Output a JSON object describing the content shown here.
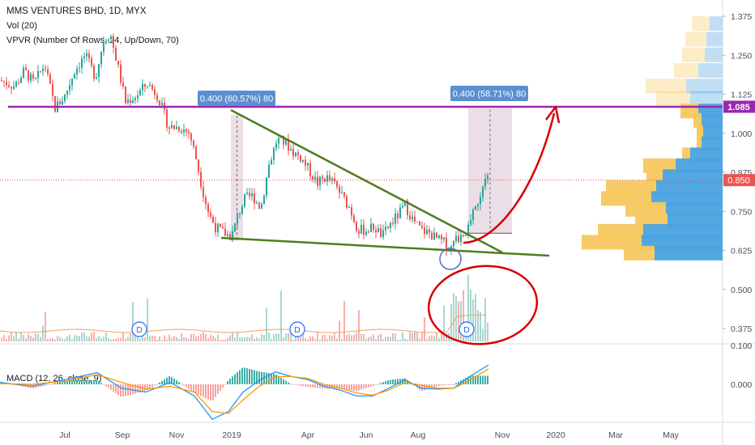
{
  "legend": {
    "title": "MMS VENTURES BHD, 1D, MYX",
    "vol": "Vol (20)",
    "vpvr": "VPVR (Number Of Rows, 24, Up/Down, 70)",
    "macd": "MACD (12, 26, close, 9)"
  },
  "colors": {
    "up": "#26a69a",
    "down": "#ef5350",
    "resistance": "#9c27b0",
    "trendline": "#4e7d1f",
    "annotation": "#d50000",
    "vpvr_up": "#4aa3df",
    "vpvr_down": "#f6c85f",
    "macd_line": "#2196f3",
    "signal_line": "#ff9800",
    "range_fill": "#c9a0b8"
  },
  "chart_data": {
    "type": "candlestick",
    "price_axis": {
      "ticks": [
        "1.375",
        "1.250",
        "1.125",
        "1.000",
        "0.875",
        "0.750",
        "0.625",
        "0.500",
        "0.375"
      ],
      "tick_values": [
        1.375,
        1.25,
        1.125,
        1.0,
        0.875,
        0.75,
        0.625,
        0.5,
        0.375
      ],
      "range": [
        0.35,
        1.4
      ]
    },
    "macd_axis": {
      "ticks": [
        "0.100",
        "0.000"
      ],
      "tick_values": [
        0.1,
        0.0
      ],
      "range": [
        -0.13,
        0.1
      ]
    },
    "time_axis": {
      "ticks": [
        "Jul",
        "Sep",
        "Nov",
        "2019",
        "Apr",
        "Jun",
        "Aug",
        "Nov",
        "2020",
        "Mar",
        "May"
      ]
    },
    "labels": {
      "resistance_price": "1.085",
      "resistance_value": 1.085,
      "last_price": "0.850",
      "last_value": 0.85
    },
    "measurements": [
      {
        "text": "0.400 (60.57%) 80",
        "from": 0.66,
        "to": 1.06
      },
      {
        "text": "0.400 (58.71%) 80",
        "from": 0.68,
        "to": 1.08
      }
    ],
    "dividend_marker": "D",
    "price_path": [
      [
        0,
        1.17
      ],
      [
        18,
        1.15
      ],
      [
        30,
        1.2
      ],
      [
        42,
        1.16
      ],
      [
        55,
        1.22
      ],
      [
        68,
        1.08
      ],
      [
        80,
        1.12
      ],
      [
        92,
        1.2
      ],
      [
        105,
        1.25
      ],
      [
        118,
        1.18
      ],
      [
        128,
        1.3
      ],
      [
        136,
        1.32
      ],
      [
        145,
        1.22
      ],
      [
        155,
        1.1
      ],
      [
        168,
        1.12
      ],
      [
        182,
        1.16
      ],
      [
        195,
        1.12
      ],
      [
        208,
        1.02
      ],
      [
        222,
        1.02
      ],
      [
        234,
        1.0
      ],
      [
        242,
        0.92
      ],
      [
        250,
        0.82
      ],
      [
        258,
        0.74
      ],
      [
        266,
        0.7
      ],
      [
        276,
        0.68
      ],
      [
        286,
        0.67
      ],
      [
        294,
        0.74
      ],
      [
        302,
        0.79
      ],
      [
        312,
        0.8
      ],
      [
        322,
        0.76
      ],
      [
        332,
        0.9
      ],
      [
        342,
        0.98
      ],
      [
        352,
        0.97
      ],
      [
        362,
        0.94
      ],
      [
        372,
        0.92
      ],
      [
        382,
        0.88
      ],
      [
        392,
        0.84
      ],
      [
        402,
        0.86
      ],
      [
        412,
        0.84
      ],
      [
        422,
        0.8
      ],
      [
        432,
        0.76
      ],
      [
        442,
        0.69
      ],
      [
        452,
        0.69
      ],
      [
        462,
        0.7
      ],
      [
        472,
        0.67
      ],
      [
        482,
        0.71
      ],
      [
        492,
        0.74
      ],
      [
        500,
        0.77
      ],
      [
        510,
        0.72
      ],
      [
        520,
        0.69
      ],
      [
        530,
        0.68
      ],
      [
        540,
        0.66
      ],
      [
        548,
        0.65
      ],
      [
        556,
        0.63
      ],
      [
        564,
        0.66
      ],
      [
        572,
        0.68
      ],
      [
        580,
        0.7
      ],
      [
        586,
        0.76
      ],
      [
        592,
        0.8
      ],
      [
        598,
        0.84
      ],
      [
        603,
        0.86
      ]
    ],
    "price_range_px": [
      0,
      603
    ],
    "volume_profile": [
      {
        "price": 1.35,
        "up": 16,
        "down": 22
      },
      {
        "price": 1.3,
        "up": 20,
        "down": 26
      },
      {
        "price": 1.25,
        "up": 22,
        "down": 28
      },
      {
        "price": 1.2,
        "up": 30,
        "down": 30
      },
      {
        "price": 1.15,
        "up": 45,
        "down": 50
      },
      {
        "price": 1.11,
        "up": 40,
        "down": 42
      },
      {
        "price": 1.07,
        "up": 30,
        "down": 22
      },
      {
        "price": 1.04,
        "up": 26,
        "down": 10
      },
      {
        "price": 1.0,
        "up": 24,
        "down": 8
      },
      {
        "price": 0.965,
        "up": 26,
        "down": 6
      },
      {
        "price": 0.93,
        "up": 40,
        "down": 10
      },
      {
        "price": 0.895,
        "up": 58,
        "down": 40
      },
      {
        "price": 0.86,
        "up": 74,
        "down": 20
      },
      {
        "price": 0.825,
        "up": 82,
        "down": 62
      },
      {
        "price": 0.79,
        "up": 88,
        "down": 62
      },
      {
        "price": 0.755,
        "up": 70,
        "down": 50
      },
      {
        "price": 0.72,
        "up": 68,
        "down": 40
      },
      {
        "price": 0.685,
        "up": 98,
        "down": 56
      },
      {
        "price": 0.65,
        "up": 100,
        "down": 74
      },
      {
        "price": 0.615,
        "up": 84,
        "down": 38
      }
    ],
    "macd_line": [
      [
        0,
        0.005
      ],
      [
        40,
        -0.005
      ],
      [
        80,
        0.012
      ],
      [
        120,
        0.03
      ],
      [
        150,
        -0.01
      ],
      [
        180,
        -0.02
      ],
      [
        210,
        0.005
      ],
      [
        240,
        -0.03
      ],
      [
        262,
        -0.09
      ],
      [
        282,
        -0.07
      ],
      [
        300,
        -0.02
      ],
      [
        320,
        0.01
      ],
      [
        340,
        0.032
      ],
      [
        360,
        0.02
      ],
      [
        380,
        0.012
      ],
      [
        400,
        -0.005
      ],
      [
        420,
        -0.015
      ],
      [
        440,
        -0.03
      ],
      [
        460,
        -0.03
      ],
      [
        480,
        -0.01
      ],
      [
        500,
        0.012
      ],
      [
        520,
        -0.01
      ],
      [
        540,
        -0.012
      ],
      [
        560,
        -0.01
      ],
      [
        580,
        0.02
      ],
      [
        603,
        0.05
      ]
    ],
    "signal_line": [
      [
        0,
        0.002
      ],
      [
        40,
        0.0
      ],
      [
        80,
        0.008
      ],
      [
        120,
        0.025
      ],
      [
        150,
        0.005
      ],
      [
        180,
        -0.012
      ],
      [
        210,
        -0.005
      ],
      [
        240,
        -0.02
      ],
      [
        262,
        -0.07
      ],
      [
        282,
        -0.075
      ],
      [
        300,
        -0.04
      ],
      [
        320,
        -0.005
      ],
      [
        340,
        0.02
      ],
      [
        360,
        0.02
      ],
      [
        380,
        0.015
      ],
      [
        400,
        0.0
      ],
      [
        420,
        -0.01
      ],
      [
        440,
        -0.022
      ],
      [
        460,
        -0.028
      ],
      [
        480,
        -0.015
      ],
      [
        500,
        0.005
      ],
      [
        520,
        -0.002
      ],
      [
        540,
        -0.01
      ],
      [
        560,
        -0.01
      ],
      [
        580,
        0.01
      ],
      [
        603,
        0.04
      ]
    ]
  }
}
